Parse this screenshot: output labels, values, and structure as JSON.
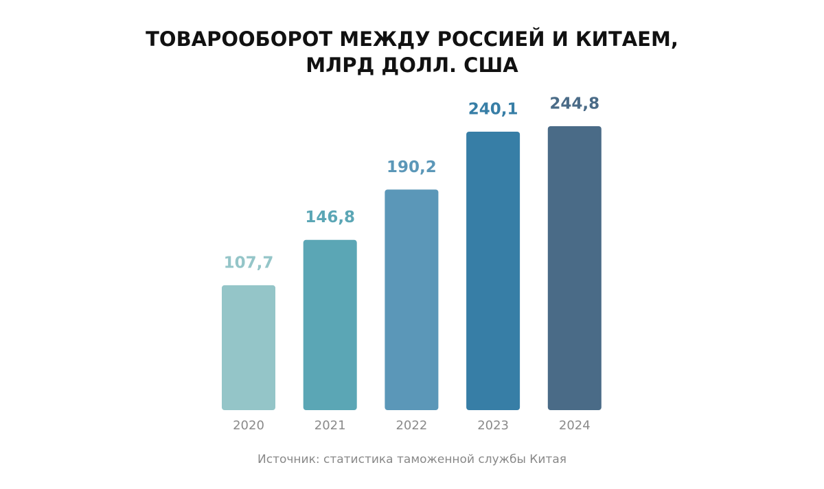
{
  "chart_data": {
    "type": "bar",
    "title": "ТОВАРООБОРОТ МЕЖДУ РОССИЕЙ И КИТАЕМ, МЛРД ДОЛЛ. США",
    "categories": [
      "2020",
      "2021",
      "2022",
      "2023",
      "2024"
    ],
    "values": [
      107.7,
      146.8,
      190.2,
      240.1,
      244.8
    ],
    "value_labels": [
      "107,7",
      "146,8",
      "190,2",
      "240,1",
      "244,8"
    ],
    "colors": [
      "#94c5c8",
      "#5ba6b5",
      "#5b97b8",
      "#377ea6",
      "#4a6b87"
    ],
    "source": "Источник: статистика таможенной службы Китая"
  }
}
